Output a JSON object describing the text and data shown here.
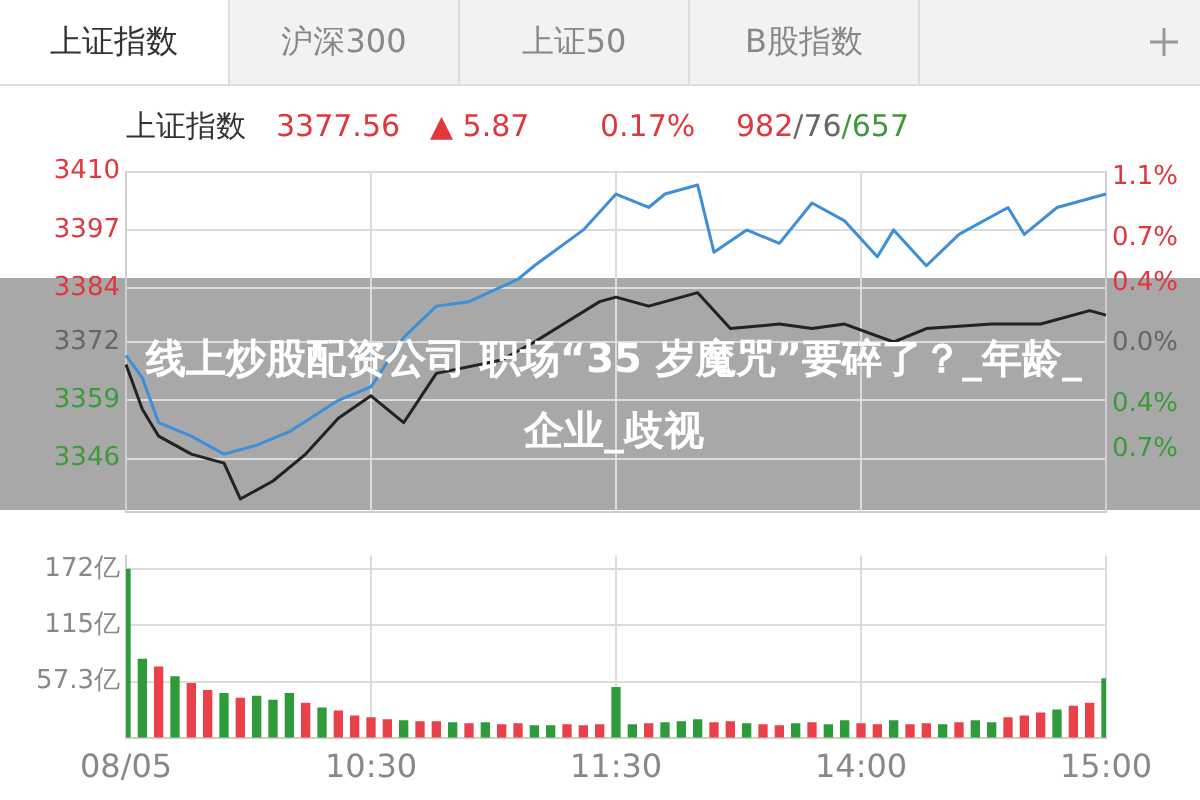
{
  "chart_data": [
    {
      "type": "other",
      "annotations": [
        "上证指数",
        "沪深300",
        "上证50",
        "B股指数"
      ]
    },
    {
      "type": "line",
      "title": "上证指数",
      "annotations": [
        "3377.56",
        "▲ 5.87",
        "0.17%",
        "982/76/657",
        "线上炒股配资公司 职场“35 岁魔咒”要碎了？_年龄_企业_歧视"
      ],
      "series": [
        {
          "color": "#3d8fd6",
          "values": [
            3369,
            3364,
            3354,
            null,
            3351,
            null,
            3347,
            null,
            3349,
            null,
            3352,
            null,
            null,
            3359,
            null,
            3362,
            null,
            3373,
            null,
            3380,
            null,
            3381,
            null,
            null,
            3386,
            3389,
            null,
            null,
            3397,
            null,
            3405,
            null,
            3402,
            3405,
            null,
            3407,
            3392,
            null,
            3397,
            null,
            3394,
            null,
            3403,
            null,
            3399,
            null,
            3391,
            3397,
            null,
            3389,
            null,
            3396,
            null,
            null,
            3402,
            3396,
            null,
            3402,
            null,
            null,
            3405
          ]
        },
        {
          "color": "#222222",
          "values": [
            3367,
            3357,
            3351,
            null,
            3347,
            null,
            3345,
            3337,
            null,
            3341,
            null,
            3347,
            null,
            3355,
            null,
            3360,
            null,
            3354,
            null,
            3365,
            null,
            null,
            null,
            3368,
            null,
            3372,
            null,
            null,
            null,
            3381,
            3382,
            null,
            3380,
            null,
            null,
            3383,
            null,
            3375,
            null,
            null,
            3376,
            null,
            3375,
            null,
            3376,
            null,
            null,
            3372,
            null,
            3375,
            null,
            null,
            null,
            3376,
            null,
            null,
            3376,
            null,
            null,
            3379,
            3378
          ]
        }
      ],
      "ylim": [
        3334,
        3410
      ],
      "yticks": [
        3346,
        3359,
        3372,
        3384,
        3397,
        3410
      ],
      "y2lim": [
        -1.12,
        1.14
      ],
      "y2ticks": [
        {
          "value": -0.7,
          "label": "0.7%"
        },
        {
          "value": -0.4,
          "label": "0.4%"
        },
        {
          "value": 0,
          "label": "0.0%"
        },
        {
          "value": 0.4,
          "label": "0.4%"
        },
        {
          "value": 0.7,
          "label": "0.7%"
        },
        {
          "value": 1.1,
          "label": "1.1%"
        }
      ],
      "grid": true,
      "tick_labels": "y"
    },
    {
      "type": "bar",
      "categories": [
        "08/05",
        null,
        null,
        null,
        null,
        null,
        null,
        null,
        null,
        null,
        null,
        null,
        null,
        null,
        null,
        "10:30",
        null,
        null,
        null,
        null,
        null,
        null,
        null,
        null,
        null,
        null,
        null,
        null,
        null,
        null,
        "11:30",
        null,
        null,
        null,
        null,
        null,
        null,
        null,
        null,
        null,
        null,
        null,
        null,
        null,
        null,
        "14:00",
        null,
        null,
        null,
        null,
        null,
        null,
        null,
        null,
        null,
        null,
        null,
        null,
        null,
        null,
        "15:00"
      ],
      "values": [
        172,
        80,
        72,
        62,
        55,
        48,
        45,
        40,
        42,
        38,
        45,
        35,
        30,
        27,
        22,
        20,
        18,
        17,
        16,
        16,
        15,
        14,
        15,
        13,
        14,
        12,
        12,
        13,
        12,
        13,
        51,
        13,
        14,
        15,
        16,
        18,
        15,
        16,
        14,
        13,
        12,
        14,
        15,
        13,
        17,
        14,
        13,
        17,
        13,
        14,
        13,
        15,
        17,
        15,
        20,
        22,
        25,
        28,
        32,
        35,
        60
      ],
      "colors": [
        "#2e9a3a",
        "#2e9a3a",
        "#e8414a",
        "#2e9a3a",
        "#e8414a",
        "#e8414a",
        "#2e9a3a",
        "#e8414a",
        "#2e9a3a",
        "#2e9a3a",
        "#2e9a3a",
        "#e8414a",
        "#2e9a3a",
        "#e8414a",
        "#e8414a",
        "#e8414a",
        "#e8414a",
        "#2e9a3a",
        "#e8414a",
        "#e8414a",
        "#2e9a3a",
        "#e8414a",
        "#2e9a3a",
        "#e8414a",
        "#e8414a",
        "#2e9a3a",
        "#2e9a3a",
        "#e8414a",
        "#e8414a",
        "#e8414a",
        "#2e9a3a",
        "#2e9a3a",
        "#e8414a",
        "#2e9a3a",
        "#2e9a3a",
        "#2e9a3a",
        "#e8414a",
        "#e8414a",
        "#2e9a3a",
        "#e8414a",
        "#e8414a",
        "#2e9a3a",
        "#e8414a",
        "#2e9a3a",
        "#2e9a3a",
        "#e8414a",
        "#e8414a",
        "#2e9a3a",
        "#e8414a",
        "#e8414a",
        "#2e9a3a",
        "#e8414a",
        "#2e9a3a",
        "#2e9a3a",
        "#e8414a",
        "#e8414a",
        "#e8414a",
        "#2e9a3a",
        "#e8414a",
        "#e8414a",
        "#2e9a3a"
      ],
      "ylim": [
        0,
        186
      ],
      "yticks": [
        {
          "value": 57.3,
          "label": "57.3亿"
        },
        {
          "value": 115,
          "label": "115亿"
        },
        {
          "value": 172,
          "label": "172亿"
        }
      ],
      "grid": true
    }
  ]
}
